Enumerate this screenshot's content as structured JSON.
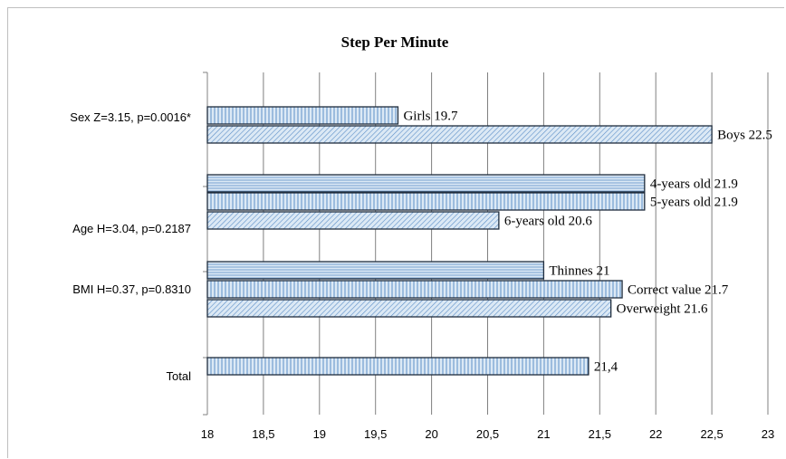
{
  "chart_data": {
    "type": "bar",
    "orientation": "horizontal",
    "title": "Step Per Minute",
    "xlim": [
      18,
      23
    ],
    "xticks": [
      "18",
      "18,5",
      "19",
      "19,5",
      "20",
      "20,5",
      "21",
      "21,5",
      "22",
      "22,5",
      "23"
    ],
    "grid": "vertical",
    "groups": [
      {
        "label": "Sex Z=3.15, p=0.0016*",
        "bars": [
          {
            "value": 19.7,
            "label": "Girls 19.7",
            "pattern": "vertical"
          },
          {
            "value": 22.5,
            "label": "Boys 22.5",
            "pattern": "diagonal"
          }
        ]
      },
      {
        "label": "Age H=3.04, p=0.2187",
        "bars": [
          {
            "value": 21.9,
            "label": "4-years old 21.9",
            "pattern": "horizontal"
          },
          {
            "value": 21.9,
            "label": "5-years old 21.9",
            "pattern": "vertical"
          },
          {
            "value": 20.6,
            "label": "6-years old 20.6",
            "pattern": "diagonal"
          }
        ]
      },
      {
        "label": "BMI H=0.37, p=0.8310",
        "bars": [
          {
            "value": 21.0,
            "label": "Thinnes 21",
            "pattern": "horizontal"
          },
          {
            "value": 21.7,
            "label": "Correct value 21.7",
            "pattern": "vertical"
          },
          {
            "value": 21.6,
            "label": "Overweight 21.6",
            "pattern": "diagonal"
          }
        ]
      },
      {
        "label": "Total",
        "bars": [
          {
            "value": 21.4,
            "label": "21,4",
            "pattern": "vertical"
          }
        ]
      }
    ],
    "colors": {
      "bar_fill": "#dce9f5",
      "bar_pattern": "#5b8ec7",
      "bar_border": "#1f2d3d",
      "grid": "#808080"
    }
  }
}
